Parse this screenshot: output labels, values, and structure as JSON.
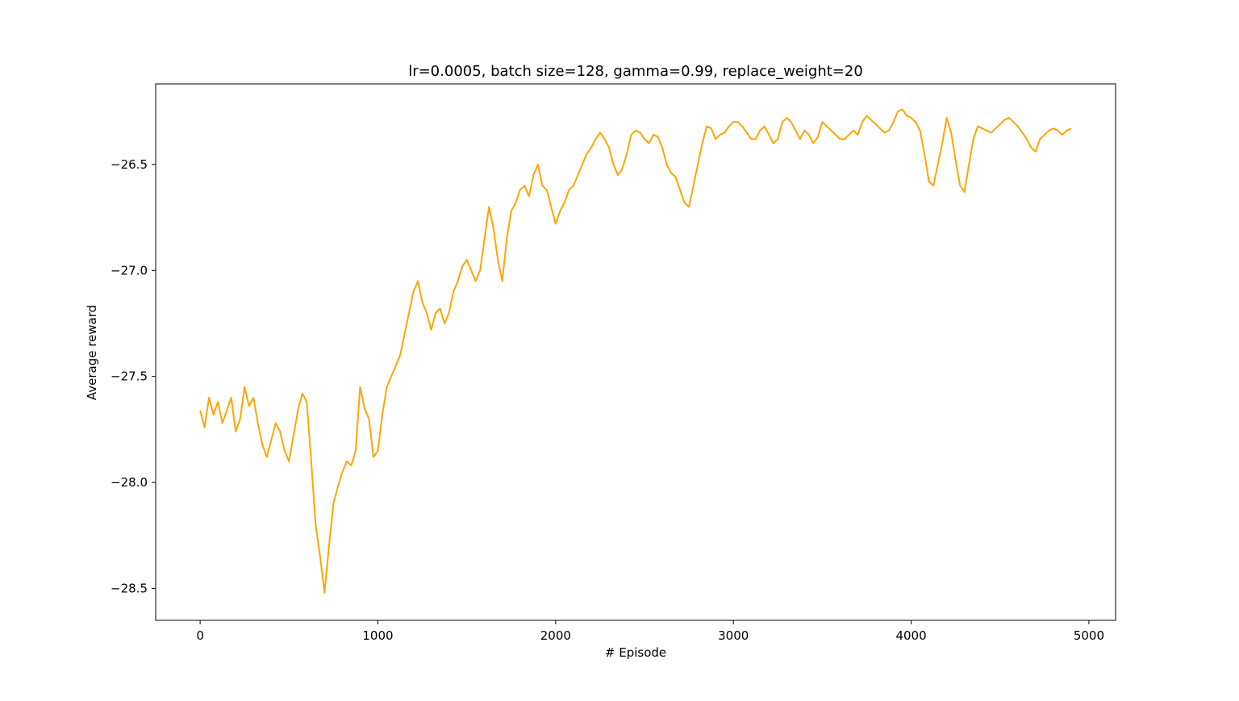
{
  "chart_data": {
    "type": "line",
    "title": "lr=0.0005, batch size=128, gamma=0.99, replace_weight=20",
    "xlabel": "# Episode",
    "ylabel": "Average reward",
    "xlim": [
      -250,
      5150
    ],
    "ylim": [
      -28.65,
      -26.12
    ],
    "xticks": [
      0,
      1000,
      2000,
      3000,
      4000,
      5000
    ],
    "xtick_labels": [
      "0",
      "1000",
      "2000",
      "3000",
      "4000",
      "5000"
    ],
    "yticks": [
      -26.5,
      -27.0,
      -27.5,
      -28.0,
      -28.5
    ],
    "ytick_labels": [
      "−26.5",
      "−27.0",
      "−27.5",
      "−28.0",
      "−28.5"
    ],
    "grid": false,
    "legend": "none",
    "series": [
      {
        "color": "#ffa500",
        "x": [
          0,
          25,
          50,
          75,
          100,
          125,
          150,
          175,
          200,
          225,
          250,
          275,
          300,
          325,
          350,
          375,
          400,
          425,
          450,
          475,
          500,
          525,
          550,
          575,
          600,
          625,
          650,
          675,
          700,
          725,
          750,
          775,
          800,
          825,
          850,
          875,
          900,
          925,
          950,
          975,
          1000,
          1025,
          1050,
          1075,
          1100,
          1125,
          1150,
          1175,
          1200,
          1225,
          1250,
          1275,
          1300,
          1325,
          1350,
          1375,
          1400,
          1425,
          1450,
          1475,
          1500,
          1525,
          1550,
          1575,
          1600,
          1625,
          1650,
          1675,
          1700,
          1725,
          1750,
          1775,
          1800,
          1825,
          1850,
          1875,
          1900,
          1925,
          1950,
          1975,
          2000,
          2025,
          2050,
          2075,
          2100,
          2125,
          2150,
          2175,
          2200,
          2225,
          2250,
          2275,
          2300,
          2325,
          2350,
          2375,
          2400,
          2425,
          2450,
          2475,
          2500,
          2525,
          2550,
          2575,
          2600,
          2625,
          2650,
          2675,
          2700,
          2725,
          2750,
          2775,
          2800,
          2825,
          2850,
          2875,
          2900,
          2925,
          2950,
          2975,
          3000,
          3025,
          3050,
          3075,
          3100,
          3125,
          3150,
          3175,
          3200,
          3225,
          3250,
          3275,
          3300,
          3325,
          3350,
          3375,
          3400,
          3425,
          3450,
          3475,
          3500,
          3525,
          3550,
          3575,
          3600,
          3625,
          3650,
          3675,
          3700,
          3725,
          3750,
          3775,
          3800,
          3825,
          3850,
          3875,
          3900,
          3925,
          3950,
          3975,
          4000,
          4025,
          4050,
          4075,
          4100,
          4125,
          4150,
          4175,
          4200,
          4225,
          4250,
          4275,
          4300,
          4325,
          4350,
          4375,
          4400,
          4425,
          4450,
          4475,
          4500,
          4525,
          4550,
          4575,
          4600,
          4625,
          4650,
          4675,
          4700,
          4725,
          4750,
          4775,
          4800,
          4825,
          4850,
          4875,
          4900
        ],
        "y": [
          -27.66,
          -27.74,
          -27.6,
          -27.68,
          -27.62,
          -27.72,
          -27.66,
          -27.6,
          -27.76,
          -27.7,
          -27.55,
          -27.64,
          -27.6,
          -27.72,
          -27.82,
          -27.88,
          -27.8,
          -27.72,
          -27.76,
          -27.85,
          -27.9,
          -27.78,
          -27.66,
          -27.58,
          -27.62,
          -27.9,
          -28.2,
          -28.35,
          -28.52,
          -28.3,
          -28.1,
          -28.02,
          -27.95,
          -27.9,
          -27.92,
          -27.85,
          -27.55,
          -27.65,
          -27.7,
          -27.88,
          -27.85,
          -27.68,
          -27.55,
          -27.5,
          -27.45,
          -27.4,
          -27.3,
          -27.2,
          -27.1,
          -27.05,
          -27.15,
          -27.2,
          -27.28,
          -27.2,
          -27.18,
          -27.25,
          -27.2,
          -27.1,
          -27.05,
          -26.98,
          -26.95,
          -27.0,
          -27.05,
          -27.0,
          -26.85,
          -26.7,
          -26.8,
          -26.95,
          -27.05,
          -26.85,
          -26.72,
          -26.68,
          -26.62,
          -26.6,
          -26.65,
          -26.55,
          -26.5,
          -26.6,
          -26.62,
          -26.7,
          -26.78,
          -26.72,
          -26.68,
          -26.62,
          -26.6,
          -26.55,
          -26.5,
          -26.45,
          -26.42,
          -26.38,
          -26.35,
          -26.38,
          -26.42,
          -26.5,
          -26.55,
          -26.52,
          -26.45,
          -26.36,
          -26.34,
          -26.35,
          -26.38,
          -26.4,
          -26.36,
          -26.37,
          -26.42,
          -26.5,
          -26.54,
          -26.56,
          -26.62,
          -26.68,
          -26.7,
          -26.6,
          -26.5,
          -26.4,
          -26.32,
          -26.33,
          -26.38,
          -26.36,
          -26.35,
          -26.32,
          -26.3,
          -26.3,
          -26.32,
          -26.35,
          -26.38,
          -26.38,
          -26.34,
          -26.32,
          -26.36,
          -26.4,
          -26.38,
          -26.3,
          -26.28,
          -26.3,
          -26.34,
          -26.38,
          -26.34,
          -26.36,
          -26.4,
          -26.37,
          -26.3,
          -26.32,
          -26.34,
          -26.36,
          -26.38,
          -26.38,
          -26.36,
          -26.34,
          -26.36,
          -26.3,
          -26.27,
          -26.29,
          -26.31,
          -26.33,
          -26.35,
          -26.34,
          -26.3,
          -26.25,
          -26.24,
          -26.27,
          -26.28,
          -26.3,
          -26.34,
          -26.45,
          -26.58,
          -26.6,
          -26.5,
          -26.4,
          -26.28,
          -26.35,
          -26.48,
          -26.6,
          -26.63,
          -26.5,
          -26.38,
          -26.32,
          -26.33,
          -26.34,
          -26.35,
          -26.33,
          -26.31,
          -26.29,
          -26.28,
          -26.3,
          -26.32,
          -26.35,
          -26.38,
          -26.42,
          -26.44,
          -26.38,
          -26.36,
          -26.34,
          -26.33,
          -26.34,
          -26.36,
          -26.34,
          -26.33
        ]
      }
    ]
  }
}
